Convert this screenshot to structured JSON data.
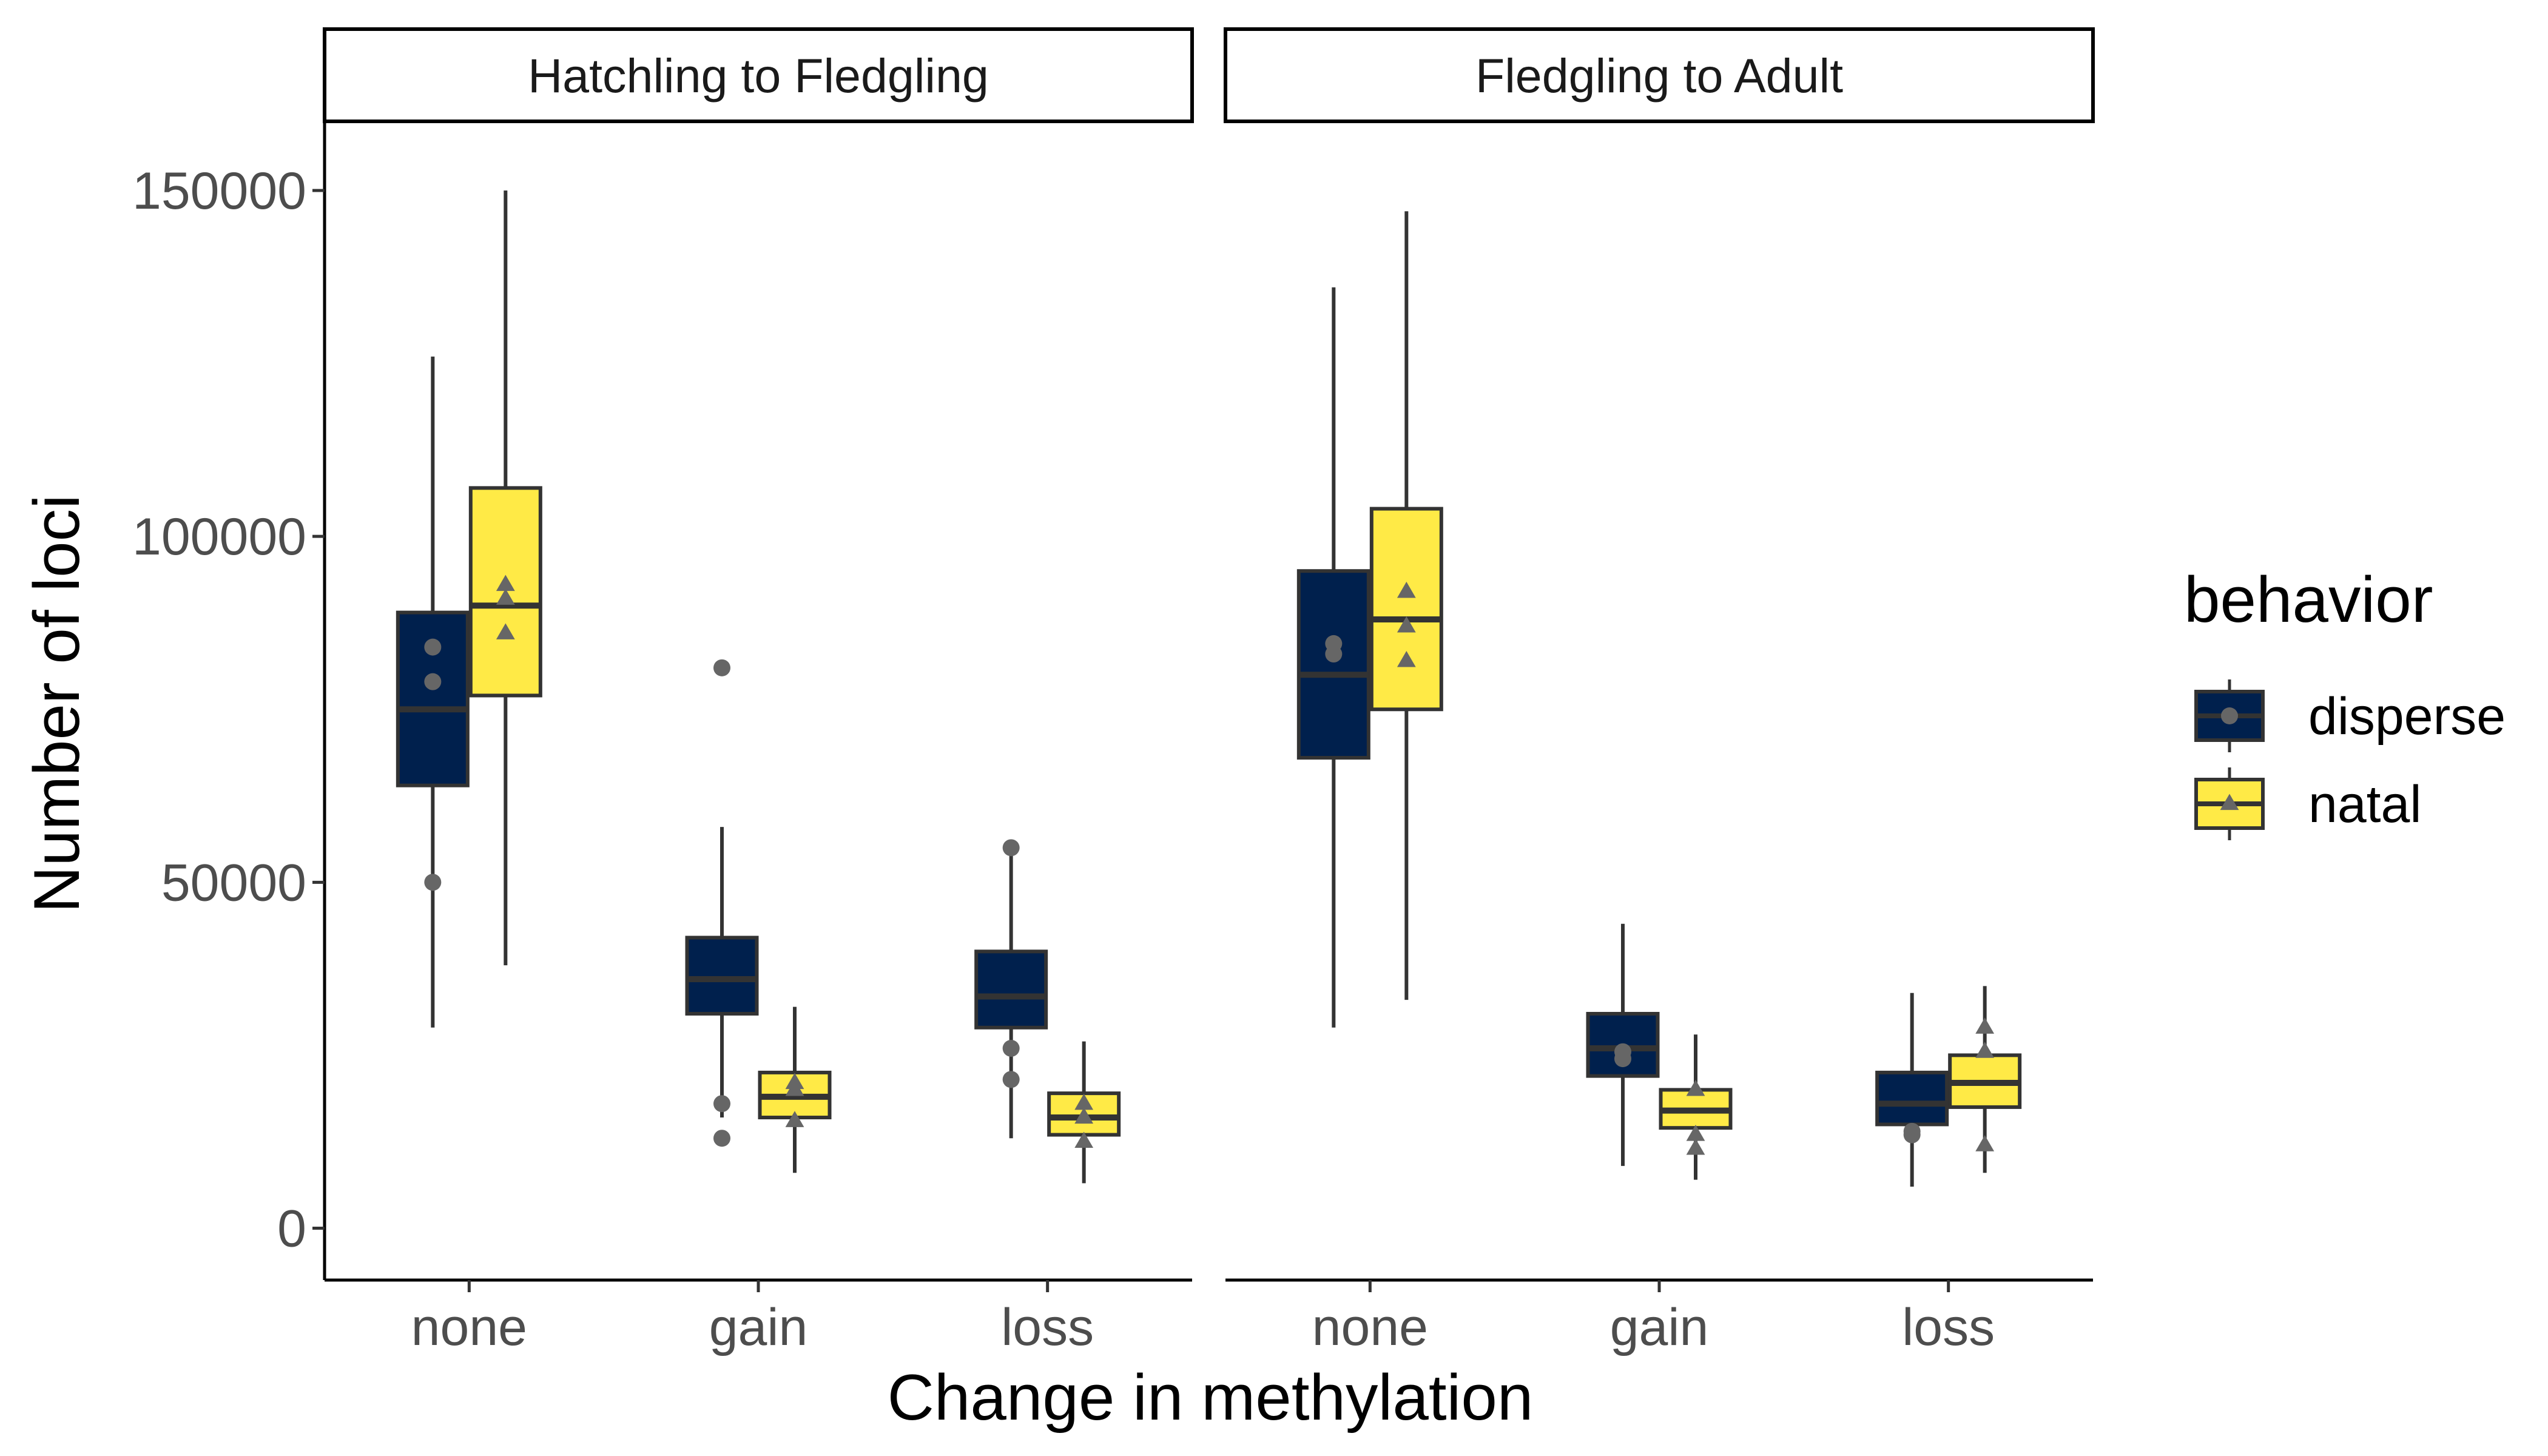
{
  "chart_data": {
    "type": "boxplot",
    "xlabel": "Change in methylation",
    "ylabel": "Number of loci",
    "ylim": [
      -7500,
      160000
    ],
    "yticks": [
      0,
      50000,
      100000,
      150000
    ],
    "ytick_labels": [
      "0",
      "50000",
      "100000",
      "150000"
    ],
    "categories": [
      "none",
      "gain",
      "loss"
    ],
    "grid": false,
    "legend": {
      "title": "behavior",
      "placement": "right",
      "entries": [
        {
          "key": "disperse",
          "label": "disperse",
          "color": "#00204D",
          "shape": "circle"
        },
        {
          "key": "natal",
          "label": "natal",
          "color": "#FFEA46",
          "shape": "triangle"
        }
      ]
    },
    "panels": [
      {
        "label": "Hatchling to Fledgling",
        "groups": [
          {
            "category": "none",
            "series": "disperse",
            "whisker_low": 29000,
            "q1": 64000,
            "median": 75000,
            "q3": 89000,
            "whisker_high": 126000,
            "points": [
              84000,
              79000,
              50000
            ]
          },
          {
            "category": "none",
            "series": "natal",
            "whisker_low": 38000,
            "q1": 77000,
            "median": 90000,
            "q3": 107000,
            "whisker_high": 150000,
            "points": [
              93000,
              91000,
              86000
            ]
          },
          {
            "category": "gain",
            "series": "disperse",
            "whisker_low": 16000,
            "q1": 31000,
            "median": 36000,
            "q3": 42000,
            "whisker_high": 58000,
            "points": [
              81000,
              18000,
              13000
            ]
          },
          {
            "category": "gain",
            "series": "natal",
            "whisker_low": 8000,
            "q1": 16000,
            "median": 19000,
            "q3": 22500,
            "whisker_high": 32000,
            "points": [
              21000,
              20000,
              15500
            ]
          },
          {
            "category": "loss",
            "series": "disperse",
            "whisker_low": 13000,
            "q1": 29000,
            "median": 33500,
            "q3": 40000,
            "whisker_high": 55000,
            "points": [
              55000,
              26000,
              21500
            ]
          },
          {
            "category": "loss",
            "series": "natal",
            "whisker_low": 6500,
            "q1": 13500,
            "median": 16000,
            "q3": 19500,
            "whisker_high": 27000,
            "points": [
              18000,
              16000,
              12500
            ]
          }
        ]
      },
      {
        "label": "Fledgling to Adult",
        "groups": [
          {
            "category": "none",
            "series": "disperse",
            "whisker_low": 29000,
            "q1": 68000,
            "median": 80000,
            "q3": 95000,
            "whisker_high": 136000,
            "points": [
              84500,
              83000
            ]
          },
          {
            "category": "none",
            "series": "natal",
            "whisker_low": 33000,
            "q1": 75000,
            "median": 88000,
            "q3": 104000,
            "whisker_high": 147000,
            "points": [
              92000,
              87000,
              82000
            ]
          },
          {
            "category": "gain",
            "series": "disperse",
            "whisker_low": 9000,
            "q1": 22000,
            "median": 26000,
            "q3": 31000,
            "whisker_high": 44000,
            "points": [
              25500,
              24500
            ]
          },
          {
            "category": "gain",
            "series": "natal",
            "whisker_low": 7000,
            "q1": 14500,
            "median": 17000,
            "q3": 20000,
            "whisker_high": 28000,
            "points": [
              20000,
              13500,
              11500
            ]
          },
          {
            "category": "loss",
            "series": "disperse",
            "whisker_low": 6000,
            "q1": 15000,
            "median": 18000,
            "q3": 22500,
            "whisker_high": 34000,
            "points": [
              14000,
              13500
            ]
          },
          {
            "category": "loss",
            "series": "natal",
            "whisker_low": 8000,
            "q1": 17500,
            "median": 21000,
            "q3": 25000,
            "whisker_high": 35000,
            "points": [
              29000,
              25500,
              12000
            ]
          }
        ]
      }
    ]
  }
}
